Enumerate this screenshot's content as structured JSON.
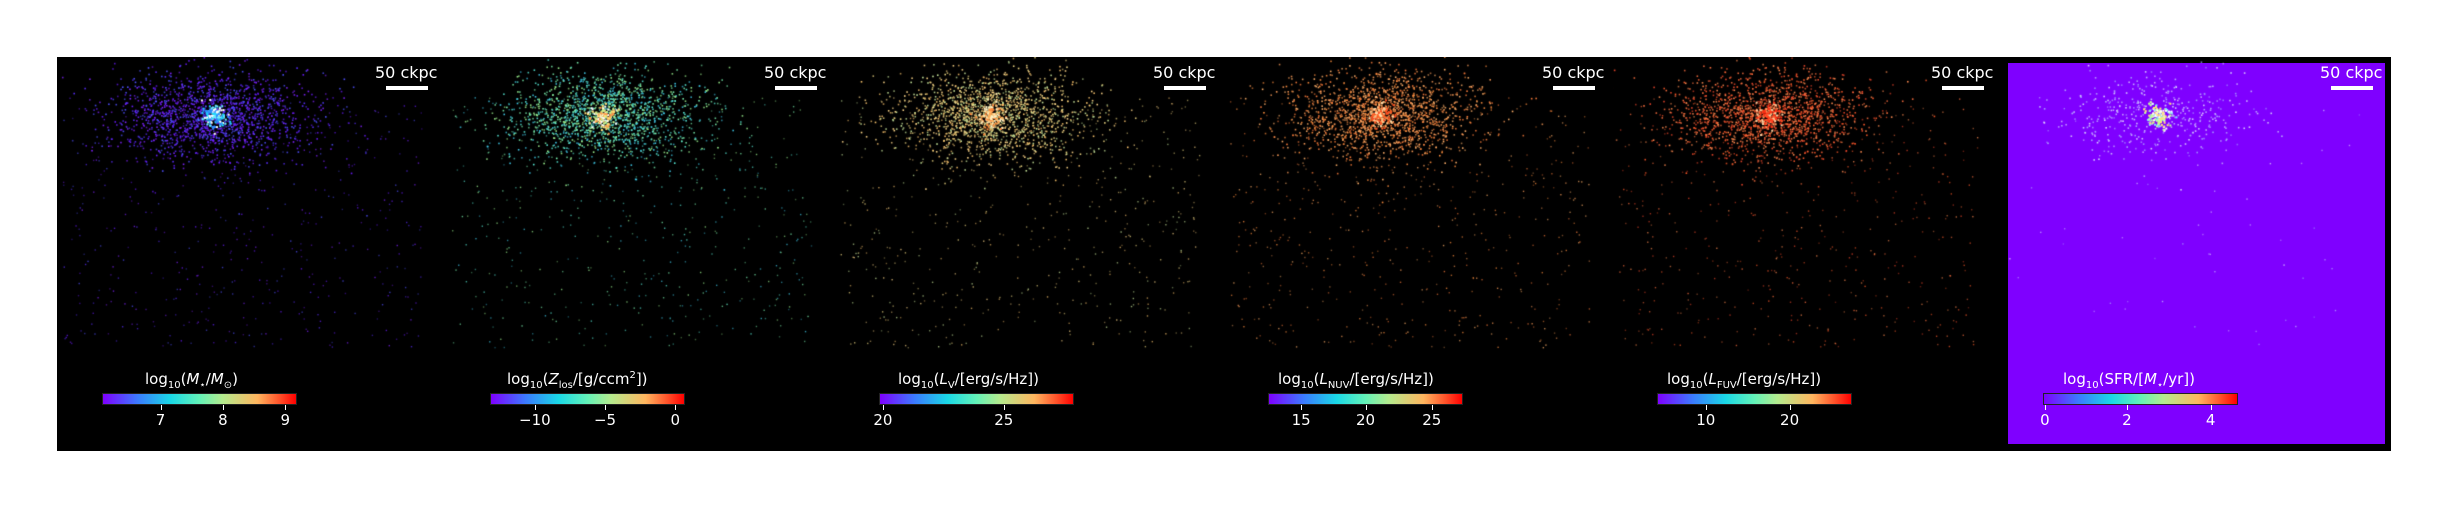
{
  "scale_bar_label": "50 ckpc",
  "panels": [
    {
      "colorbar_label_parts": [
        "log",
        "10",
        "(",
        "M",
        "⋆",
        "/",
        "M",
        "⊙",
        ")"
      ],
      "ticks": [
        {
          "label": "7",
          "frac": 0.3
        },
        {
          "label": "8",
          "frac": 0.62
        },
        {
          "label": "9",
          "frac": 0.94
        }
      ],
      "palette": "mass"
    },
    {
      "colorbar_label_parts": [
        "log",
        "10",
        "(",
        "Z",
        "los",
        "/[g/ccm",
        "2",
        "])"
      ],
      "ticks": [
        {
          "label": "−10",
          "frac": 0.23
        },
        {
          "label": "−5",
          "frac": 0.59
        },
        {
          "label": "0",
          "frac": 0.95
        }
      ],
      "palette": "metal"
    },
    {
      "colorbar_label_parts": [
        "log",
        "10",
        "(",
        "L",
        "V",
        "/[erg/s/Hz])"
      ],
      "ticks": [
        {
          "label": "20",
          "frac": 0.02
        },
        {
          "label": "25",
          "frac": 0.64
        }
      ],
      "palette": "lum"
    },
    {
      "colorbar_label_parts": [
        "log",
        "10",
        "(",
        "L",
        "NUV",
        "/[erg/s/Hz])"
      ],
      "ticks": [
        {
          "label": "15",
          "frac": 0.17
        },
        {
          "label": "20",
          "frac": 0.5
        },
        {
          "label": "25",
          "frac": 0.84
        }
      ],
      "palette": "nuv"
    },
    {
      "colorbar_label_parts": [
        "log",
        "10",
        "(",
        "L",
        "FUV",
        "/[erg/s/Hz])"
      ],
      "ticks": [
        {
          "label": "10",
          "frac": 0.25
        },
        {
          "label": "20",
          "frac": 0.68
        }
      ],
      "palette": "fuv"
    },
    {
      "colorbar_label_parts": [
        "log",
        "10",
        "(SFR/[",
        "M",
        "⋆",
        "/yr])"
      ],
      "ticks": [
        {
          "label": "0",
          "frac": 0.01
        },
        {
          "label": "2",
          "frac": 0.43
        },
        {
          "label": "4",
          "frac": 0.86
        }
      ],
      "palette": "sfr"
    }
  ]
}
